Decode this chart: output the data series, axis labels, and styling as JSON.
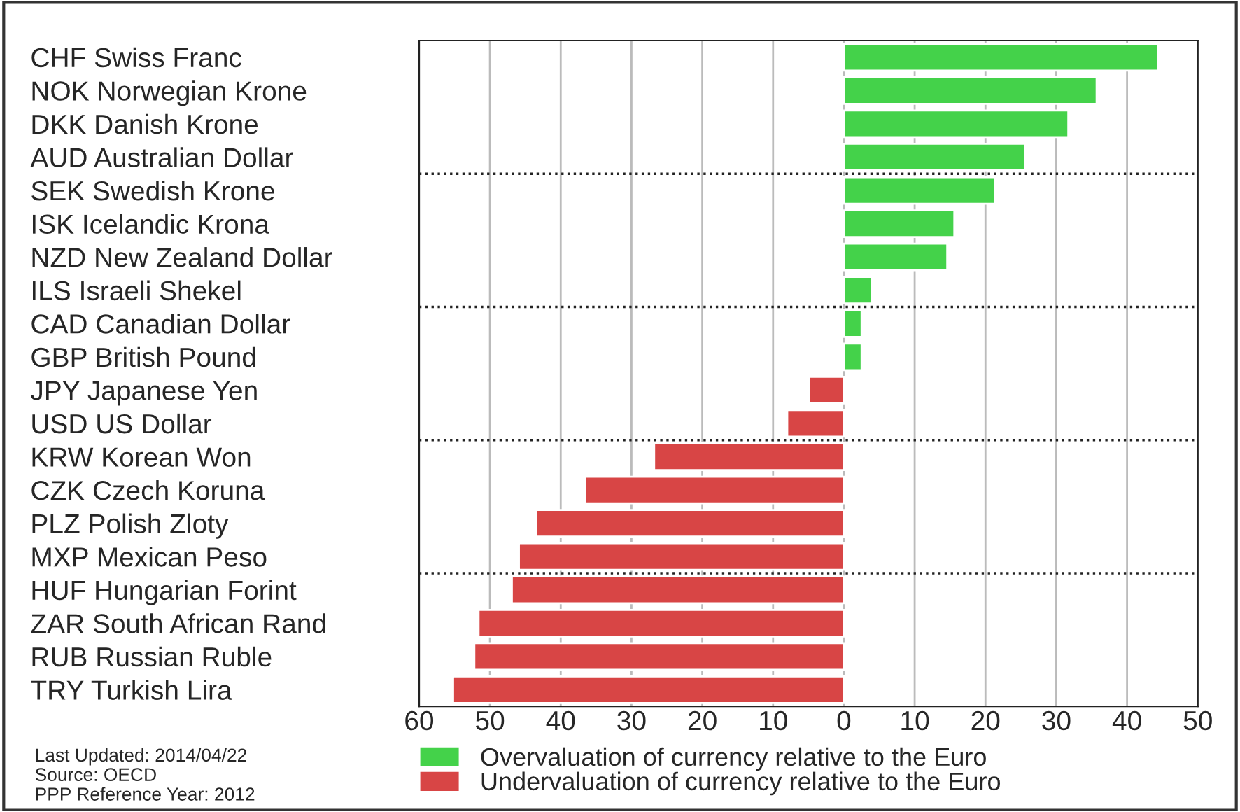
{
  "chart_data": {
    "type": "bar",
    "orientation": "horizontal",
    "categories": [
      "CHF Swiss Franc",
      "NOK Norwegian Krone",
      "DKK Danish Krone",
      "AUD Australian Dollar",
      "SEK Swedish Krone",
      "ISK Icelandic Krona",
      "NZD New Zealand Dollar",
      "ILS Israeli Shekel",
      "CAD Canadian Dollar",
      "GBP British Pound",
      "JPY Japanese Yen",
      "USD US Dollar",
      "KRW Korean Won",
      "CZK Czech Koruna",
      "PLZ Polish Zloty",
      "MXP Mexican Peso",
      "HUF Hungarian Forint",
      "ZAR South African Rand",
      "RUB Russian Ruble",
      "TRY Turkish Lira"
    ],
    "series": [
      {
        "name": "Overvaluation of currency relative to the Euro",
        "color": "#44d24a",
        "values": [
          44.4,
          35.7,
          31.7,
          25.6,
          21.3,
          15.6,
          14.6,
          4.0,
          2.5,
          2.5,
          null,
          null,
          null,
          null,
          null,
          null,
          null,
          null,
          null,
          null
        ]
      },
      {
        "name": "Undervaluation of currency relative to the Euro",
        "color": "#d84545",
        "values": [
          null,
          null,
          null,
          null,
          null,
          null,
          null,
          null,
          null,
          null,
          -4.9,
          -8.0,
          -26.8,
          -36.6,
          -43.5,
          -45.9,
          -46.9,
          -51.6,
          -52.2,
          -55.2
        ]
      }
    ],
    "xlim": [
      -60,
      50
    ],
    "xticks": [
      {
        "value": -60,
        "label": "60"
      },
      {
        "value": -50,
        "label": "50"
      },
      {
        "value": -40,
        "label": "40"
      },
      {
        "value": -30,
        "label": "30"
      },
      {
        "value": -20,
        "label": "20"
      },
      {
        "value": -10,
        "label": "10"
      },
      0,
      10,
      20,
      30,
      40,
      50
    ],
    "grid": "x",
    "legend": "bottom",
    "annotations": [
      "Last Updated: 2014/04/22",
      "Source: OECD",
      "PPP Reference Year: 2012"
    ]
  }
}
